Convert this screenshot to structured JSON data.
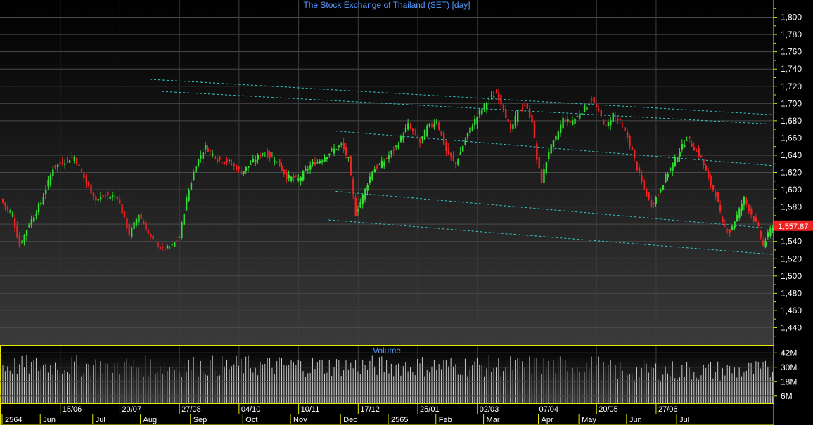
{
  "chart_data": [
    {
      "type": "candlestick",
      "title": "The Stock Exchange of Thailand (SET) [day]",
      "ylim": [
        1420,
        1820
      ],
      "y_ticks": [
        1440,
        1460,
        1480,
        1500,
        1520,
        1540,
        1560,
        1580,
        1600,
        1620,
        1640,
        1660,
        1680,
        1700,
        1720,
        1740,
        1760,
        1780,
        1800
      ],
      "y_tick_labels": [
        "1,440",
        "1,460",
        "1,480",
        "1,500",
        "1,520",
        "1,540",
        "1,560",
        "1,580",
        "1,600",
        "1,620",
        "1,640",
        "1,660",
        "1,680",
        "1,700",
        "1,720",
        "1,740",
        "1,760",
        "1,780",
        "1,800"
      ],
      "last_price_label": "1,557.87",
      "last_price": 1557.87,
      "grid": true,
      "series_anchors": [
        {
          "i": 0,
          "close": 1585
        },
        {
          "i": 4,
          "close": 1570
        },
        {
          "i": 7,
          "close": 1535
        },
        {
          "i": 11,
          "close": 1560
        },
        {
          "i": 16,
          "close": 1585
        },
        {
          "i": 21,
          "close": 1625
        },
        {
          "i": 27,
          "close": 1635
        },
        {
          "i": 30,
          "close": 1638
        },
        {
          "i": 35,
          "close": 1608
        },
        {
          "i": 39,
          "close": 1588
        },
        {
          "i": 43,
          "close": 1593
        },
        {
          "i": 48,
          "close": 1592
        },
        {
          "i": 53,
          "close": 1548
        },
        {
          "i": 57,
          "close": 1572
        },
        {
          "i": 62,
          "close": 1543
        },
        {
          "i": 67,
          "close": 1530
        },
        {
          "i": 71,
          "close": 1535
        },
        {
          "i": 74,
          "close": 1545
        },
        {
          "i": 77,
          "close": 1590
        },
        {
          "i": 81,
          "close": 1630
        },
        {
          "i": 85,
          "close": 1650
        },
        {
          "i": 90,
          "close": 1635
        },
        {
          "i": 95,
          "close": 1632
        },
        {
          "i": 100,
          "close": 1620
        },
        {
          "i": 104,
          "close": 1630
        },
        {
          "i": 109,
          "close": 1643
        },
        {
          "i": 114,
          "close": 1636
        },
        {
          "i": 119,
          "close": 1615
        },
        {
          "i": 124,
          "close": 1612
        },
        {
          "i": 129,
          "close": 1628
        },
        {
          "i": 134,
          "close": 1636
        },
        {
          "i": 138,
          "close": 1645
        },
        {
          "i": 142,
          "close": 1652
        },
        {
          "i": 145,
          "close": 1635
        },
        {
          "i": 148,
          "close": 1572
        },
        {
          "i": 151,
          "close": 1593
        },
        {
          "i": 155,
          "close": 1622
        },
        {
          "i": 160,
          "close": 1633
        },
        {
          "i": 165,
          "close": 1650
        },
        {
          "i": 170,
          "close": 1675
        },
        {
          "i": 175,
          "close": 1655
        },
        {
          "i": 178,
          "close": 1672
        },
        {
          "i": 182,
          "close": 1680
        },
        {
          "i": 186,
          "close": 1645
        },
        {
          "i": 190,
          "close": 1630
        },
        {
          "i": 195,
          "close": 1665
        },
        {
          "i": 200,
          "close": 1690
        },
        {
          "i": 204,
          "close": 1705
        },
        {
          "i": 207,
          "close": 1712
        },
        {
          "i": 210,
          "close": 1695
        },
        {
          "i": 213,
          "close": 1668
        },
        {
          "i": 216,
          "close": 1690
        },
        {
          "i": 219,
          "close": 1698
        },
        {
          "i": 222,
          "close": 1680
        },
        {
          "i": 224,
          "close": 1635
        },
        {
          "i": 226,
          "close": 1610
        },
        {
          "i": 229,
          "close": 1645
        },
        {
          "i": 232,
          "close": 1660
        },
        {
          "i": 235,
          "close": 1682
        },
        {
          "i": 238,
          "close": 1678
        },
        {
          "i": 241,
          "close": 1685
        },
        {
          "i": 244,
          "close": 1695
        },
        {
          "i": 247,
          "close": 1705
        },
        {
          "i": 250,
          "close": 1690
        },
        {
          "i": 253,
          "close": 1672
        },
        {
          "i": 256,
          "close": 1688
        },
        {
          "i": 259,
          "close": 1678
        },
        {
          "i": 262,
          "close": 1660
        },
        {
          "i": 264,
          "close": 1645
        },
        {
          "i": 266,
          "close": 1625
        },
        {
          "i": 269,
          "close": 1600
        },
        {
          "i": 272,
          "close": 1582
        },
        {
          "i": 275,
          "close": 1595
        },
        {
          "i": 278,
          "close": 1615
        },
        {
          "i": 281,
          "close": 1630
        },
        {
          "i": 284,
          "close": 1645
        },
        {
          "i": 287,
          "close": 1660
        },
        {
          "i": 290,
          "close": 1648
        },
        {
          "i": 293,
          "close": 1637
        },
        {
          "i": 296,
          "close": 1612
        },
        {
          "i": 299,
          "close": 1595
        },
        {
          "i": 302,
          "close": 1560
        },
        {
          "i": 305,
          "close": 1552
        },
        {
          "i": 308,
          "close": 1570
        },
        {
          "i": 311,
          "close": 1590
        },
        {
          "i": 314,
          "close": 1572
        },
        {
          "i": 317,
          "close": 1555
        },
        {
          "i": 319,
          "close": 1535
        },
        {
          "i": 321,
          "close": 1548
        },
        {
          "i": 323,
          "close": 1558
        }
      ],
      "trend_lines": [
        {
          "from": [
            62,
            1728
          ],
          "to": [
            323,
            1687
          ],
          "extend": true
        },
        {
          "from": [
            67,
            1714
          ],
          "to": [
            323,
            1676
          ],
          "extend": true
        },
        {
          "from": [
            140,
            1668
          ],
          "to": [
            323,
            1628
          ],
          "extend": true
        },
        {
          "from": [
            140,
            1598
          ],
          "to": [
            323,
            1555
          ],
          "extend": true
        },
        {
          "from": [
            137,
            1565
          ],
          "to": [
            323,
            1525
          ],
          "extend": true
        }
      ]
    },
    {
      "type": "bar",
      "title": "Volume",
      "ylabel": "",
      "ylim": [
        0,
        48000000
      ],
      "y_ticks": [
        6000000,
        18000000,
        30000000,
        42000000
      ],
      "y_tick_labels": [
        "6M",
        "18M",
        "30M",
        "42M"
      ],
      "values_note": "daily volume, approx 20M-45M"
    }
  ],
  "x_axis": {
    "top_labels": [
      {
        "text": "15/06",
        "i": 25
      },
      {
        "text": "20/07",
        "i": 50
      },
      {
        "text": "27/08",
        "i": 75
      },
      {
        "text": "04/10",
        "i": 100
      },
      {
        "text": "10/11",
        "i": 125
      },
      {
        "text": "17/12",
        "i": 150
      },
      {
        "text": "25/01",
        "i": 175
      },
      {
        "text": "02/03",
        "i": 200
      },
      {
        "text": "07/04",
        "i": 225
      },
      {
        "text": "20/05",
        "i": 250
      },
      {
        "text": "27/06",
        "i": 275
      }
    ],
    "bottom_labels": [
      {
        "text": "2564",
        "i": 0
      },
      {
        "text": "Jun",
        "i": 16
      },
      {
        "text": "Jul",
        "i": 38
      },
      {
        "text": "Aug",
        "i": 58
      },
      {
        "text": "Sep",
        "i": 79
      },
      {
        "text": "Oct",
        "i": 101
      },
      {
        "text": "Nov",
        "i": 121
      },
      {
        "text": "Dec",
        "i": 142
      },
      {
        "text": "2565",
        "i": 162
      },
      {
        "text": "Feb",
        "i": 182
      },
      {
        "text": "Mar",
        "i": 202
      },
      {
        "text": "Apr",
        "i": 225
      },
      {
        "text": "May",
        "i": 242
      },
      {
        "text": "Jun",
        "i": 262
      },
      {
        "text": "Jul",
        "i": 283
      }
    ]
  },
  "colors": {
    "up": "#33dd33",
    "down": "#ee2222",
    "title": "#5599ff",
    "axis_line": "#e8e800",
    "trend": "#33cccc",
    "last_price_bg": "#ee2222",
    "text": "#ffffff",
    "volume_bar": "#cccccc"
  }
}
